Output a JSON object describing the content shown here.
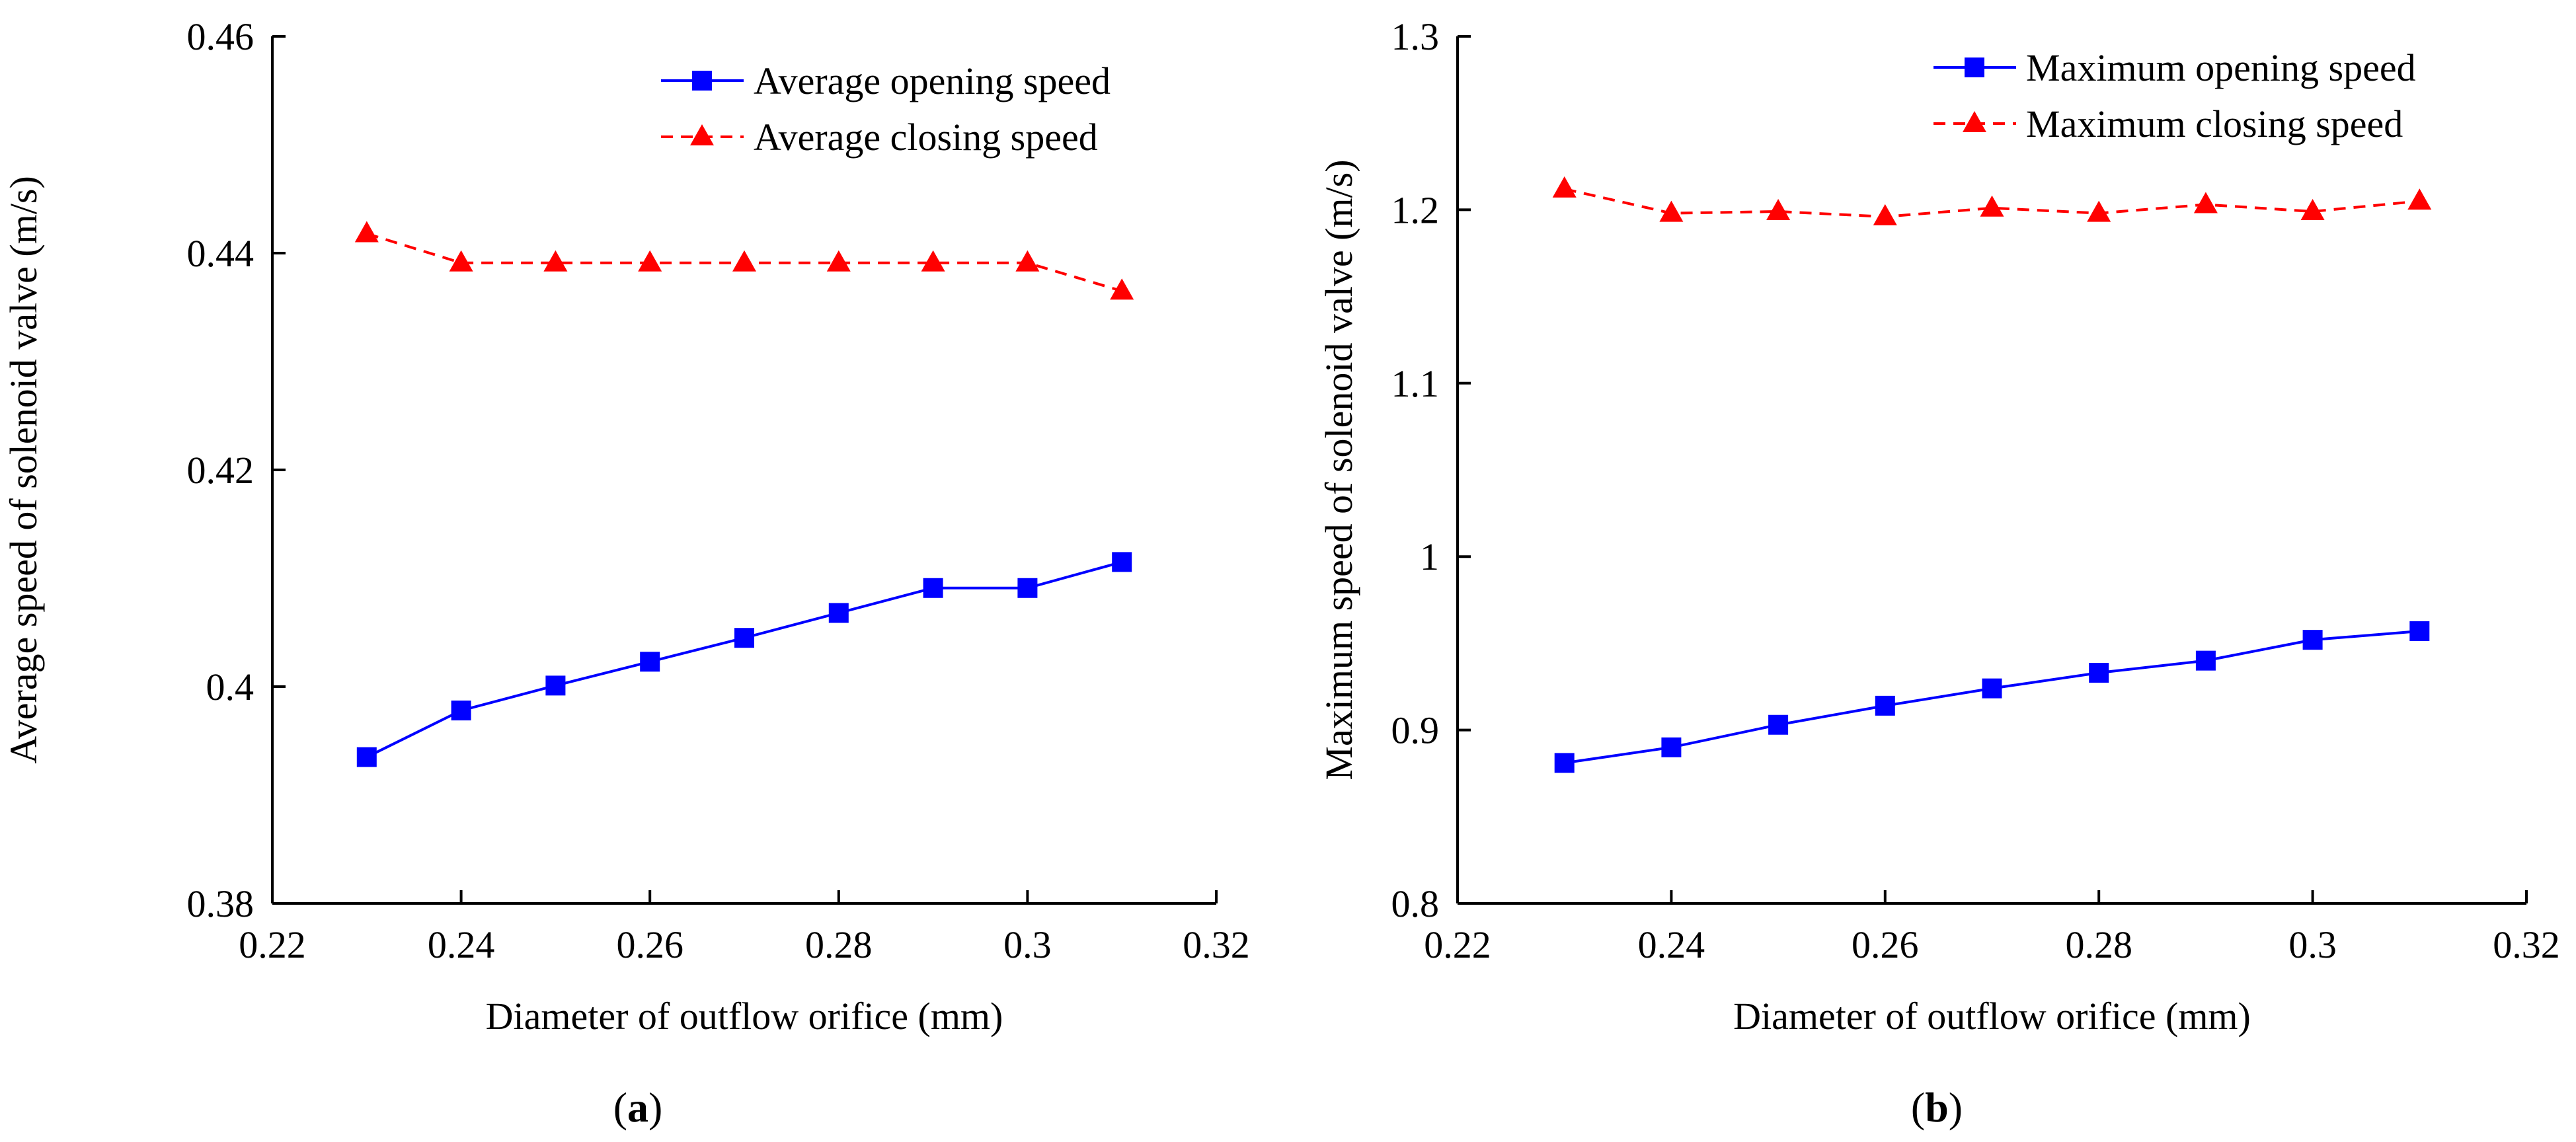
{
  "chart_data": [
    {
      "type": "line",
      "panel_label": "(a)",
      "panel_letter": "a",
      "xlabel": "Diameter of outflow orifice (mm)",
      "ylabel": "Average speed of solenoid valve (m/s)",
      "xlim": [
        0.22,
        0.32
      ],
      "ylim": [
        0.38,
        0.46
      ],
      "xticks": [
        0.22,
        0.24,
        0.26,
        0.28,
        0.3,
        0.32
      ],
      "xtick_labels": [
        "0.22",
        "0.24",
        "0.26",
        "0.28",
        "0.3",
        "0.32"
      ],
      "yticks": [
        0.38,
        0.4,
        0.42,
        0.44,
        0.46
      ],
      "ytick_labels": [
        "0.38",
        "0.4",
        "0.42",
        "0.44",
        "0.46"
      ],
      "x": [
        0.23,
        0.24,
        0.25,
        0.26,
        0.27,
        0.28,
        0.29,
        0.3,
        0.31
      ],
      "series": [
        {
          "name": "Average opening speed",
          "color": "#0000ff",
          "marker": "square",
          "line": "solid",
          "values": [
            0.3935,
            0.3978,
            0.4001,
            0.4023,
            0.4045,
            0.4068,
            0.4091,
            0.4091,
            0.4115
          ]
        },
        {
          "name": "Average closing speed",
          "color": "#ff0000",
          "marker": "triangle",
          "line": "dashed",
          "values": [
            0.4418,
            0.4391,
            0.4391,
            0.4391,
            0.4391,
            0.4391,
            0.4391,
            0.4391,
            0.4365
          ]
        }
      ],
      "legend": "top-right"
    },
    {
      "type": "line",
      "panel_label": "(b)",
      "panel_letter": "b",
      "xlabel": "Diameter of outflow orifice (mm)",
      "ylabel": "Maximum speed of solenoid valve (m/s)",
      "xlim": [
        0.22,
        0.32
      ],
      "ylim": [
        0.8,
        1.3
      ],
      "xticks": [
        0.22,
        0.24,
        0.26,
        0.28,
        0.3,
        0.32
      ],
      "xtick_labels": [
        "0.22",
        "0.24",
        "0.26",
        "0.28",
        "0.3",
        "0.32"
      ],
      "yticks": [
        0.8,
        0.9,
        1.0,
        1.1,
        1.2,
        1.3
      ],
      "ytick_labels": [
        "0.8",
        "0.9",
        "1",
        "1.1",
        "1.2",
        "1.3"
      ],
      "x": [
        0.23,
        0.24,
        0.25,
        0.26,
        0.27,
        0.28,
        0.29,
        0.3,
        0.31
      ],
      "series": [
        {
          "name": "Maximum opening speed",
          "color": "#0000ff",
          "marker": "square",
          "line": "solid",
          "values": [
            0.881,
            0.89,
            0.903,
            0.914,
            0.924,
            0.933,
            0.94,
            0.952,
            0.957
          ]
        },
        {
          "name": "Maximum closing speed",
          "color": "#ff0000",
          "marker": "triangle",
          "line": "dashed",
          "values": [
            1.212,
            1.198,
            1.199,
            1.196,
            1.201,
            1.198,
            1.203,
            1.199,
            1.205
          ]
        }
      ],
      "legend": "top-right"
    }
  ]
}
